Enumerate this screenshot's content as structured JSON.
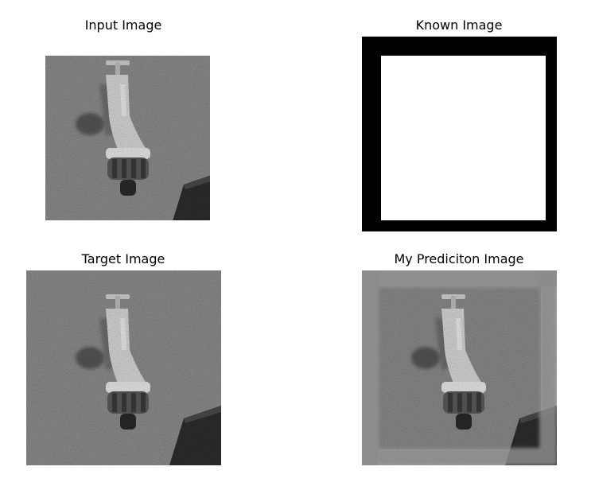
{
  "panels": [
    {
      "title": "Input Image"
    },
    {
      "title": "Known Image"
    },
    {
      "title": "Target Image"
    },
    {
      "title": "My Prediciton Image"
    }
  ],
  "colors": {
    "background": "#ffffff",
    "mask_black": "#000000",
    "mask_white": "#ffffff",
    "wall_gray": "#8a8a8a",
    "faucet_light": "#d8d8d8",
    "shadow_dark": "#3a3a3a"
  },
  "image_content": {
    "subject": "faucet-on-textured-wall",
    "style": "grayscale"
  }
}
